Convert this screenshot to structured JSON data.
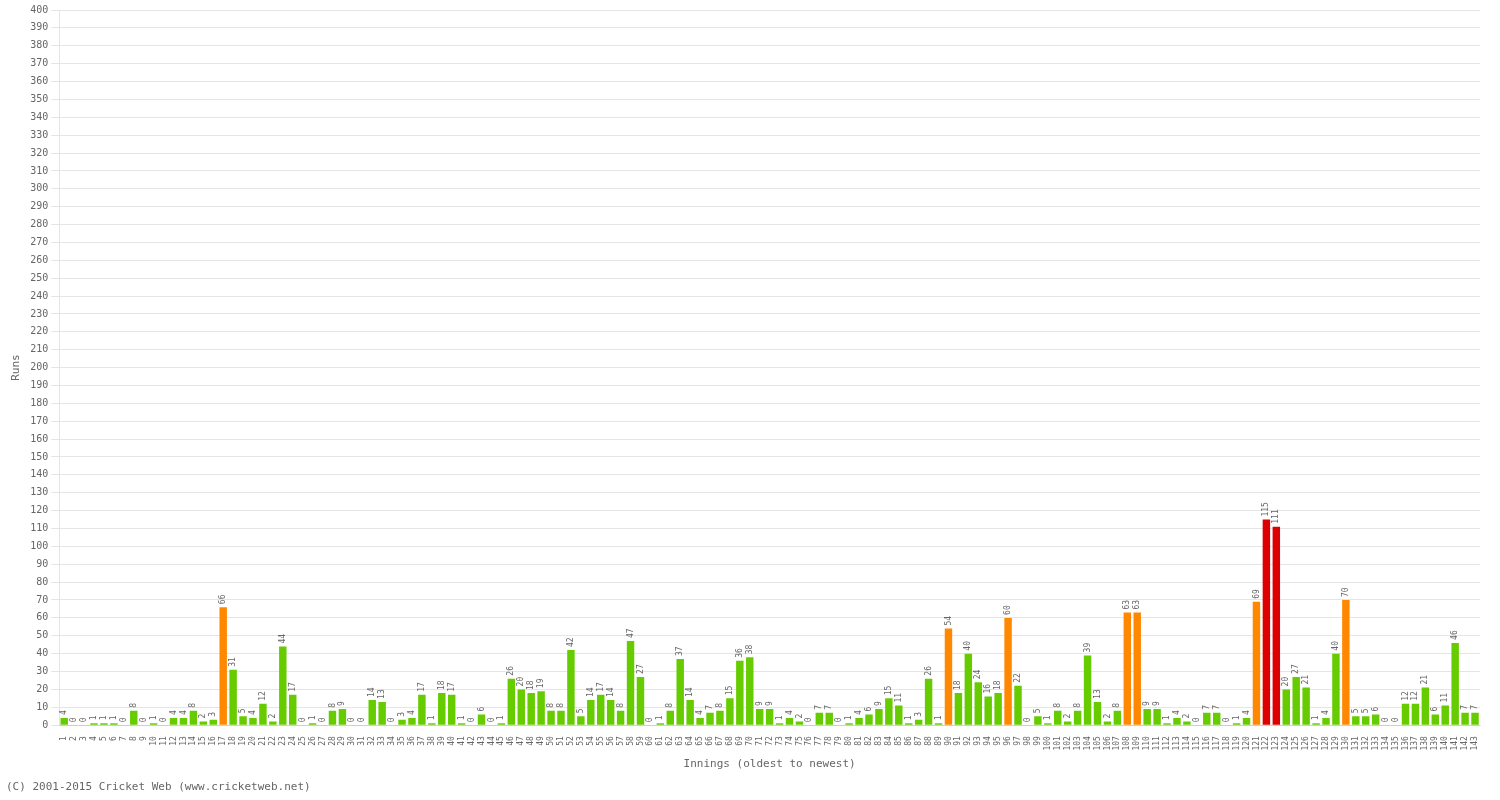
{
  "chart_data": {
    "type": "bar",
    "xlabel": "Innings (oldest to newest)",
    "ylabel": "Runs",
    "categories": [
      "1",
      "2",
      "3",
      "4",
      "5",
      "6",
      "7",
      "8",
      "9",
      "10",
      "11",
      "12",
      "13",
      "14",
      "15",
      "16",
      "17",
      "18",
      "19",
      "20",
      "21",
      "22",
      "23",
      "24",
      "25",
      "26",
      "27",
      "28",
      "29",
      "30",
      "31",
      "32",
      "33",
      "34",
      "35",
      "36",
      "37",
      "38",
      "39",
      "40",
      "41",
      "42",
      "43",
      "44",
      "45",
      "46",
      "47",
      "48",
      "49",
      "50",
      "51",
      "52",
      "53",
      "54",
      "55",
      "56",
      "57",
      "58",
      "59",
      "60",
      "61",
      "62",
      "63",
      "64",
      "65",
      "66",
      "67",
      "68",
      "69",
      "70",
      "71",
      "72",
      "73",
      "74",
      "75",
      "76",
      "77",
      "78",
      "79",
      "80",
      "81",
      "82",
      "83",
      "84",
      "85",
      "86",
      "87",
      "88",
      "89",
      "90",
      "91",
      "92",
      "93",
      "94",
      "95",
      "96",
      "97",
      "98",
      "99",
      "100",
      "101",
      "102",
      "103",
      "104",
      "105",
      "106",
      "107",
      "108",
      "109",
      "110",
      "111",
      "112",
      "113",
      "114",
      "115",
      "116",
      "117",
      "118",
      "119",
      "120",
      "121",
      "122",
      "123",
      "124",
      "125",
      "126",
      "127",
      "128",
      "129",
      "130",
      "131",
      "132",
      "133",
      "134",
      "135",
      "136",
      "137",
      "138",
      "139",
      "140",
      "141",
      "142",
      "143"
    ],
    "values": [
      4,
      0,
      0,
      1,
      1,
      1,
      0,
      8,
      0,
      1,
      0,
      4,
      4,
      8,
      2,
      3,
      66,
      31,
      5,
      4,
      12,
      2,
      44,
      17,
      0,
      1,
      0,
      8,
      9,
      0,
      0,
      14,
      13,
      0,
      3,
      4,
      17,
      1,
      18,
      17,
      1,
      0,
      6,
      0,
      1,
      26,
      20,
      18,
      19,
      8,
      8,
      42,
      5,
      14,
      17,
      14,
      8,
      47,
      27,
      0,
      1,
      8,
      37,
      14,
      4,
      7,
      8,
      15,
      36,
      38,
      9,
      9,
      1,
      4,
      2,
      0,
      7,
      7,
      0,
      1,
      4,
      6,
      9,
      15,
      11,
      1,
      3,
      26,
      1,
      54,
      18,
      40,
      24,
      16,
      18,
      60,
      22,
      0,
      5,
      1,
      8,
      2,
      8,
      39,
      13,
      2,
      8,
      63,
      63,
      9,
      9,
      1,
      4,
      2,
      0,
      7,
      7,
      0,
      1,
      4,
      69,
      115,
      111,
      20,
      27,
      21,
      1,
      4,
      40,
      70,
      5,
      5,
      6,
      0,
      0,
      12,
      12,
      21,
      6,
      11,
      46,
      7,
      7
    ],
    "colors": [
      "#66cc00",
      "#66cc00",
      "#66cc00",
      "#66cc00",
      "#66cc00",
      "#66cc00",
      "#66cc00",
      "#66cc00",
      "#66cc00",
      "#66cc00",
      "#66cc00",
      "#66cc00",
      "#66cc00",
      "#66cc00",
      "#66cc00",
      "#66cc00",
      "#ff8800",
      "#66cc00",
      "#66cc00",
      "#66cc00",
      "#66cc00",
      "#66cc00",
      "#66cc00",
      "#66cc00",
      "#66cc00",
      "#66cc00",
      "#66cc00",
      "#66cc00",
      "#66cc00",
      "#66cc00",
      "#66cc00",
      "#66cc00",
      "#66cc00",
      "#66cc00",
      "#66cc00",
      "#66cc00",
      "#66cc00",
      "#66cc00",
      "#66cc00",
      "#66cc00",
      "#66cc00",
      "#66cc00",
      "#66cc00",
      "#66cc00",
      "#66cc00",
      "#66cc00",
      "#66cc00",
      "#66cc00",
      "#66cc00",
      "#66cc00",
      "#66cc00",
      "#66cc00",
      "#66cc00",
      "#66cc00",
      "#66cc00",
      "#66cc00",
      "#66cc00",
      "#66cc00",
      "#66cc00",
      "#66cc00",
      "#66cc00",
      "#66cc00",
      "#66cc00",
      "#66cc00",
      "#66cc00",
      "#66cc00",
      "#66cc00",
      "#66cc00",
      "#66cc00",
      "#66cc00",
      "#66cc00",
      "#66cc00",
      "#66cc00",
      "#66cc00",
      "#66cc00",
      "#66cc00",
      "#66cc00",
      "#66cc00",
      "#66cc00",
      "#66cc00",
      "#66cc00",
      "#66cc00",
      "#66cc00",
      "#66cc00",
      "#66cc00",
      "#66cc00",
      "#66cc00",
      "#66cc00",
      "#66cc00",
      "#ff8800",
      "#66cc00",
      "#66cc00",
      "#66cc00",
      "#66cc00",
      "#66cc00",
      "#ff8800",
      "#66cc00",
      "#66cc00",
      "#66cc00",
      "#66cc00",
      "#66cc00",
      "#66cc00",
      "#66cc00",
      "#66cc00",
      "#66cc00",
      "#66cc00",
      "#66cc00",
      "#ff8800",
      "#ff8800",
      "#66cc00",
      "#66cc00",
      "#66cc00",
      "#66cc00",
      "#66cc00",
      "#66cc00",
      "#66cc00",
      "#66cc00",
      "#66cc00",
      "#66cc00",
      "#66cc00",
      "#ff8800",
      "#dd0000",
      "#dd0000",
      "#66cc00",
      "#66cc00",
      "#66cc00",
      "#66cc00",
      "#66cc00",
      "#66cc00",
      "#ff8800",
      "#66cc00",
      "#66cc00",
      "#66cc00",
      "#66cc00",
      "#66cc00",
      "#66cc00",
      "#66cc00",
      "#66cc00",
      "#66cc00",
      "#66cc00",
      "#66cc00",
      "#66cc00",
      "#66cc00"
    ],
    "ylim": [
      0,
      400
    ],
    "yticks": [
      0,
      10,
      20,
      30,
      40,
      50,
      60,
      70,
      80,
      90,
      100,
      110,
      120,
      130,
      140,
      150,
      160,
      170,
      180,
      190,
      200,
      210,
      220,
      230,
      240,
      250,
      260,
      270,
      280,
      290,
      300,
      310,
      320,
      330,
      340,
      350,
      360,
      370,
      380,
      390,
      400
    ],
    "grid": true,
    "data_labels": true,
    "annotations": [
      {
        "text": "(C) 2001-2015 Cricket Web (www.cricketweb.net)"
      }
    ]
  }
}
